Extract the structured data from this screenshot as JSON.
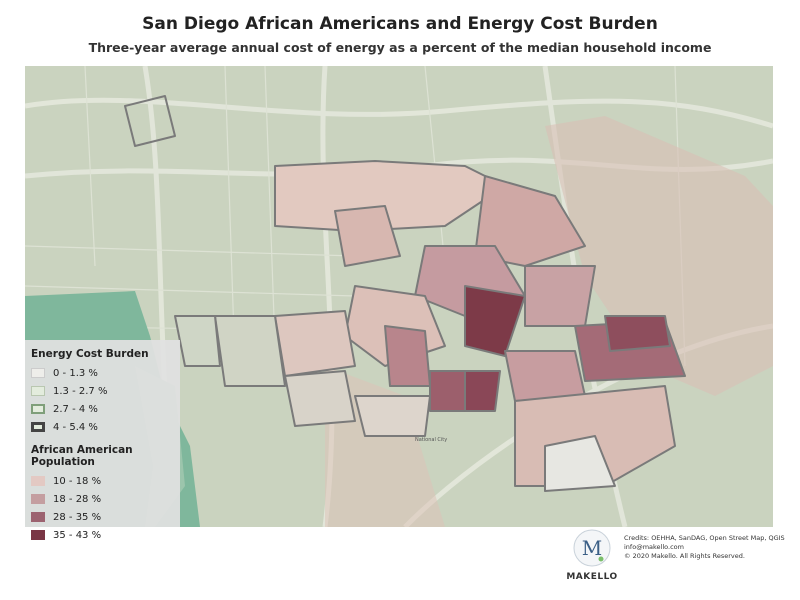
{
  "header": {
    "title": "San Diego African Americans and Energy Cost Burden",
    "subtitle": "Three-year average annual cost of energy as a percent of the median household income"
  },
  "map_labels": [
    "National City"
  ],
  "legend": {
    "sections": [
      {
        "title": "Energy Cost Burden",
        "items": [
          "0 - 1.3 %",
          "1.3 - 2.7 %",
          "2.7 - 4 %",
          "4 - 5.4 %"
        ]
      },
      {
        "title": "African American Population",
        "items": [
          "10 - 18 %",
          "18 - 28 %",
          "28 - 35 %",
          "35 - 43 %"
        ]
      }
    ]
  },
  "logo": {
    "letter": "M",
    "name": "MAKELLO"
  },
  "credits": {
    "lines": [
      "Credits: OEHHA, SanDAG, Open Street Map, QGIS",
      "info@makello.com",
      "© 2020 Makello. All Rights Reserved."
    ]
  }
}
